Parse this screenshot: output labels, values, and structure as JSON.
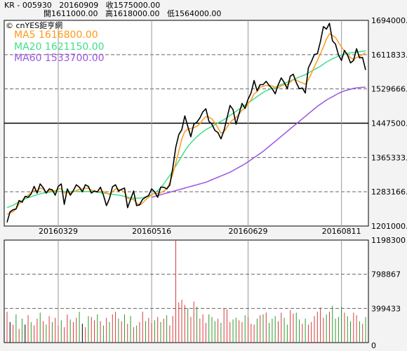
{
  "header": {
    "line1": "KR - 005930   20160909   收1575000.00",
    "line2": "開1611000.00   高1618000.00   低1564000.00"
  },
  "brand": "© cnYES鉅亨網",
  "legend": [
    {
      "label": "MA5 1616800.00",
      "color": "#ff9a1a"
    },
    {
      "label": "MA20 1621150.00",
      "color": "#3fe08a"
    },
    {
      "label": "MA60 1533700.00",
      "color": "#9b55e0"
    }
  ],
  "colors": {
    "price": "#000000",
    "ma5": "#ff9a1a",
    "ma20": "#3fe08a",
    "ma60": "#9b55e0",
    "vol_up": "#d63b3b",
    "vol_down": "#2e9a2e",
    "vol_flat": "#000000"
  },
  "chart_data": [
    {
      "type": "line",
      "x_tick_labels": [
        "20160329",
        "20160516",
        "20160629",
        "20160811"
      ],
      "y_tick_labels": [
        "1694000.0",
        "1611833.3",
        "1529666.6",
        "1447500.0",
        "1365333.3",
        "1283166.6",
        "1201000.0"
      ],
      "ylim": [
        1201000,
        1694000
      ],
      "series": [
        {
          "name": "",
          "values": [
            1210000,
            1235000,
            1240000,
            1242000,
            1262000,
            1258000,
            1272000,
            1270000,
            1278000,
            1296000,
            1280000,
            1302000,
            1293000,
            1280000,
            1290000,
            1288000,
            1275000,
            1296000,
            1302000,
            1253000,
            1290000,
            1275000,
            1286000,
            1300000,
            1294000,
            1283000,
            1300000,
            1296000,
            1280000,
            1285000,
            1283000,
            1294000,
            1275000,
            1250000,
            1267000,
            1295000,
            1300000,
            1285000,
            1289000,
            1292000,
            1245000,
            1265000,
            1285000,
            1250000,
            1252000,
            1265000,
            1270000,
            1274000,
            1290000,
            1283000,
            1270000,
            1294000,
            1294000,
            1290000,
            1299000,
            1340000,
            1390000,
            1420000,
            1432000,
            1465000,
            1440000,
            1415000,
            1445000,
            1450000,
            1460000,
            1475000,
            1482000,
            1452000,
            1445000,
            1430000,
            1425000,
            1410000,
            1430000,
            1460000,
            1490000,
            1480000,
            1445000,
            1470000,
            1495000,
            1483000,
            1505000,
            1520000,
            1550000,
            1525000,
            1540000,
            1540000,
            1548000,
            1538000,
            1530000,
            1518000,
            1540000,
            1556000,
            1545000,
            1530000,
            1560000,
            1565000,
            1545000,
            1530000,
            1532000,
            1520000,
            1580000,
            1595000,
            1612000,
            1614000,
            1643000,
            1679000,
            1673000,
            1687000,
            1645000,
            1637000,
            1611000,
            1598000,
            1622000,
            1611000,
            1592000,
            1598000,
            1626000,
            1604000,
            1605000,
            1575000
          ]
        },
        {
          "name": "MA5",
          "values": [
            1229000,
            1233000,
            1235000,
            1242000,
            1254000,
            1262000,
            1270000,
            1275000,
            1282000,
            1286000,
            1285000,
            1292000,
            1290000,
            1282000,
            1285000,
            1286000,
            1285000,
            1290000,
            1290000,
            1280000,
            1282000,
            1280000,
            1283000,
            1286000,
            1289000,
            1290000,
            1292000,
            1291000,
            1287000,
            1285000,
            1283000,
            1284000,
            1284000,
            1280000,
            1277000,
            1283000,
            1290000,
            1289000,
            1287000,
            1281000,
            1268000,
            1265000,
            1265000,
            1256000,
            1251000,
            1256000,
            1264000,
            1270000,
            1276000,
            1279000,
            1279000,
            1281000,
            1285000,
            1290000,
            1305000,
            1325000,
            1352000,
            1380000,
            1410000,
            1428000,
            1433000,
            1435000,
            1437000,
            1440000,
            1446000,
            1456000,
            1463000,
            1462000,
            1458000,
            1448000,
            1436000,
            1424000,
            1427000,
            1438000,
            1449000,
            1456000,
            1461000,
            1469000,
            1479000,
            1483000,
            1494000,
            1503000,
            1518000,
            1523000,
            1534000,
            1536000,
            1538000,
            1537000,
            1537000,
            1533000,
            1532000,
            1537000,
            1540000,
            1540000,
            1546000,
            1552000,
            1551000,
            1547000,
            1544000,
            1541000,
            1552000,
            1566000,
            1583000,
            1598000,
            1614000,
            1630000,
            1649000,
            1662000,
            1658000,
            1653000,
            1641000,
            1630000,
            1620000,
            1610000,
            1605000,
            1600000,
            1605000,
            1607000,
            1612000,
            1616800
          ]
        },
        {
          "name": "MA20",
          "values": [
            1245000,
            1248000,
            1251000,
            1255000,
            1259000,
            1262000,
            1266000,
            1269000,
            1271000,
            1274000,
            1276000,
            1278000,
            1280000,
            1281000,
            1282000,
            1283000,
            1283000,
            1284000,
            1284000,
            1284000,
            1284000,
            1284000,
            1284000,
            1284000,
            1284000,
            1284000,
            1284000,
            1284000,
            1284000,
            1283000,
            1282000,
            1281000,
            1280000,
            1279000,
            1278000,
            1277000,
            1276000,
            1275000,
            1274000,
            1272000,
            1270000,
            1269000,
            1268000,
            1268000,
            1268000,
            1269000,
            1271000,
            1273000,
            1276000,
            1280000,
            1286000,
            1293000,
            1302000,
            1312000,
            1322000,
            1333000,
            1345000,
            1357000,
            1369000,
            1381000,
            1391000,
            1400000,
            1408000,
            1415000,
            1421000,
            1427000,
            1432000,
            1436000,
            1440000,
            1444000,
            1448000,
            1452000,
            1456000,
            1461000,
            1466000,
            1471000,
            1476000,
            1481000,
            1486000,
            1491000,
            1496000,
            1501000,
            1506000,
            1511000,
            1516000,
            1521000,
            1525000,
            1528000,
            1531000,
            1534000,
            1537000,
            1540000,
            1543000,
            1546000,
            1549000,
            1552000,
            1555000,
            1558000,
            1561000,
            1564000,
            1568000,
            1572000,
            1576000,
            1580000,
            1584000,
            1589000,
            1594000,
            1598000,
            1602000,
            1605000,
            1608000,
            1611000,
            1613000,
            1615000,
            1616000,
            1617000,
            1618000,
            1619000,
            1620000,
            1621150
          ]
        },
        {
          "name": "MA60",
          "values": [
            null,
            null,
            null,
            null,
            null,
            null,
            null,
            null,
            null,
            null,
            null,
            null,
            null,
            null,
            null,
            null,
            null,
            null,
            null,
            null,
            null,
            null,
            null,
            null,
            null,
            null,
            null,
            null,
            null,
            null,
            null,
            null,
            null,
            null,
            null,
            null,
            null,
            null,
            null,
            null,
            null,
            null,
            null,
            null,
            null,
            null,
            null,
            null,
            1270000,
            1272000,
            1274000,
            1276000,
            1278000,
            1280000,
            1282000,
            1284000,
            1286000,
            1288000,
            1290000,
            1292000,
            1294000,
            1296000,
            1298000,
            1300000,
            1302000,
            1304000,
            1306000,
            1309000,
            1312000,
            1315000,
            1318000,
            1321000,
            1324000,
            1327000,
            1330000,
            1334000,
            1338000,
            1342000,
            1346000,
            1350000,
            1355000,
            1360000,
            1365000,
            1370000,
            1375000,
            1380000,
            1386000,
            1392000,
            1398000,
            1404000,
            1410000,
            1416000,
            1422000,
            1428000,
            1434000,
            1440000,
            1446000,
            1452000,
            1458000,
            1464000,
            1470000,
            1476000,
            1482000,
            1488000,
            1493000,
            1498000,
            1503000,
            1507000,
            1511000,
            1515000,
            1519000,
            1522000,
            1525000,
            1527000,
            1529000,
            1531000,
            1532000,
            1533000,
            1533500,
            1533700
          ]
        }
      ]
    },
    {
      "type": "bar",
      "y_tick_labels": [
        "1198300",
        "798867",
        "399433",
        "0"
      ],
      "ylim": [
        0,
        1198300
      ],
      "series": [
        {
          "name": "",
          "values": [
            360000,
            240000,
            210000,
            330000,
            160000,
            280000,
            210000,
            320000,
            240000,
            200000,
            280000,
            350000,
            250000,
            210000,
            310000,
            240000,
            290000,
            200000,
            260000,
            180000,
            330000,
            270000,
            240000,
            290000,
            360000,
            220000,
            180000,
            310000,
            300000,
            260000,
            330000,
            250000,
            200000,
            290000,
            240000,
            330000,
            360000,
            280000,
            250000,
            330000,
            220000,
            310000,
            180000,
            200000,
            240000,
            360000,
            250000,
            290000,
            230000,
            260000,
            300000,
            240000,
            280000,
            320000,
            200000,
            310000,
            1198300,
            470000,
            500000,
            440000,
            400000,
            300000,
            480000,
            420000,
            280000,
            330000,
            230000,
            330000,
            300000,
            250000,
            280000,
            230000,
            400000,
            390000,
            240000,
            270000,
            290000,
            260000,
            240000,
            320000,
            300000,
            220000,
            210000,
            280000,
            320000,
            330000,
            350000,
            230000,
            280000,
            310000,
            250000,
            350000,
            290000,
            210000,
            380000,
            340000,
            350000,
            270000,
            220000,
            280000,
            210000,
            240000,
            310000,
            360000,
            410000,
            290000,
            330000,
            360000,
            430000,
            280000,
            300000,
            420000,
            350000,
            310000,
            250000,
            350000,
            320000,
            250000,
            220000,
            300000
          ]
        },
        {
          "name": "",
          "values": [
            1,
            0,
            1,
            -1,
            1,
            -1,
            0,
            1,
            -1,
            1,
            1,
            -1,
            1,
            -1,
            1,
            -1,
            1,
            1,
            -1,
            1,
            1,
            -1,
            1,
            1,
            -1,
            0,
            1,
            -1,
            1,
            1,
            -1,
            1,
            -1,
            1,
            -1,
            1,
            1,
            -1,
            1,
            -1,
            1,
            -1,
            1,
            -1,
            1,
            1,
            -1,
            1,
            1,
            -1,
            1,
            -1,
            1,
            -1,
            1,
            1,
            1,
            1,
            1,
            1,
            -1,
            1,
            1,
            -1,
            1,
            1,
            1,
            -1,
            -1,
            -1,
            1,
            -1,
            1,
            1,
            1,
            -1,
            -1,
            1,
            1,
            -1,
            1,
            1,
            1,
            -1,
            1,
            -1,
            1,
            -1,
            -1,
            -1,
            1,
            1,
            -1,
            -1,
            1,
            1,
            -1,
            -1,
            1,
            -1,
            1,
            1,
            1,
            1,
            1,
            1,
            -1,
            1,
            -1,
            -1,
            -1,
            -1,
            1,
            -1,
            -1,
            1,
            1,
            -1,
            1,
            -1
          ]
        }
      ]
    }
  ]
}
